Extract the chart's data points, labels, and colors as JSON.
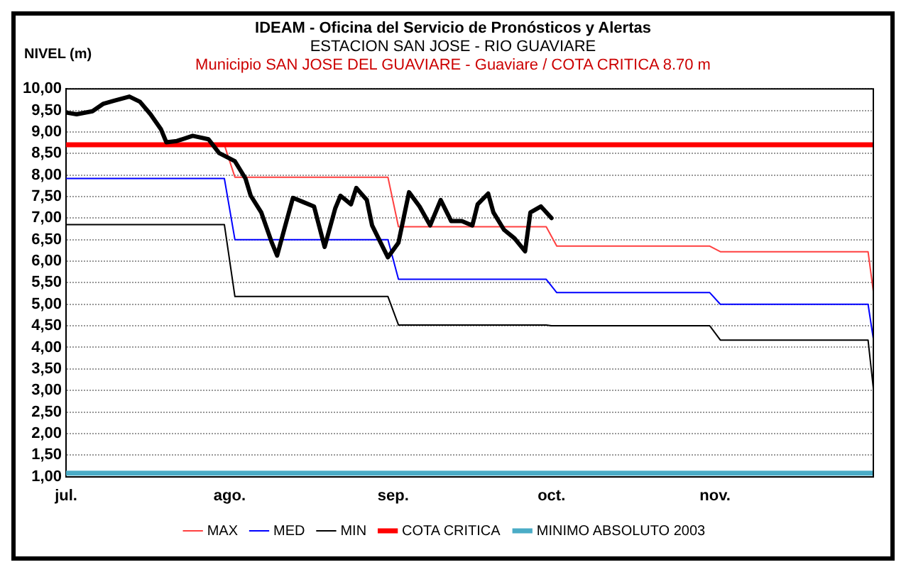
{
  "chart_data": {
    "type": "line",
    "title": "IDEAM - Oficina del Servicio de Pronósticos y Alertas",
    "subtitle": "ESTACION SAN JOSE - RIO GUAVIARE",
    "annotations": [
      "Municipio SAN JOSE DEL GUAVIARE - Guaviare  / COTA CRITICA 8.70 m"
    ],
    "ylabel": "NIVEL (m)",
    "xlim": [
      "--07-01",
      "--12-01"
    ],
    "xticks": [
      {
        "value": "--07-01",
        "label": "jul."
      },
      {
        "value": "--08-01",
        "label": "ago."
      },
      {
        "value": "--09-01",
        "label": "sep."
      },
      {
        "value": "--10-01",
        "label": "oct."
      },
      {
        "value": "--11-01",
        "label": "nov."
      }
    ],
    "ylim": [
      1,
      10
    ],
    "yticks": [
      {
        "value": 1,
        "label": "1,00"
      },
      {
        "value": 1.5,
        "label": "1,50"
      },
      {
        "value": 2,
        "label": "2,00"
      },
      {
        "value": 2.5,
        "label": "2,50"
      },
      {
        "value": 3,
        "label": "3,00"
      },
      {
        "value": 3.5,
        "label": "3,50"
      },
      {
        "value": 4,
        "label": "4,00"
      },
      {
        "value": 4.5,
        "label": "4,50"
      },
      {
        "value": 5,
        "label": "5,00"
      },
      {
        "value": 5.5,
        "label": "5,50"
      },
      {
        "value": 6,
        "label": "6,00"
      },
      {
        "value": 6.5,
        "label": "6,50"
      },
      {
        "value": 7,
        "label": "7,00"
      },
      {
        "value": 7.5,
        "label": "7,50"
      },
      {
        "value": 8,
        "label": "8,00"
      },
      {
        "value": 8.5,
        "label": "8,50"
      },
      {
        "value": 9,
        "label": "9,00"
      },
      {
        "value": 9.5,
        "label": "9,50"
      },
      {
        "value": 10,
        "label": "10,00"
      }
    ],
    "grid": "y",
    "legend": "bottom",
    "marker": "none",
    "line_style": "solid",
    "series": [
      {
        "name": "MAX",
        "color": "#ff4040",
        "x": [
          "--07-31",
          "--08-02",
          "--08-31",
          "--09-02",
          "--09-30",
          "--10-02",
          "--10-31",
          "--11-02",
          "--11-30",
          "--12-01"
        ],
        "values": [
          8.7,
          7.95,
          7.95,
          6.8,
          6.8,
          6.35,
          6.35,
          6.22,
          6.22,
          5.3
        ]
      },
      {
        "name": "MED",
        "color": "#0000ff",
        "x": [
          "--07-01",
          "--07-31",
          "--08-02",
          "--08-31",
          "--09-02",
          "--09-30",
          "--10-02",
          "--10-31",
          "--11-02",
          "--11-30",
          "--12-01"
        ],
        "values": [
          7.92,
          7.92,
          6.5,
          6.5,
          5.58,
          5.58,
          5.27,
          5.27,
          5.0,
          5.0,
          4.2
        ]
      },
      {
        "name": "MIN",
        "color": "#000000",
        "x": [
          "--07-01",
          "--07-31",
          "--08-02",
          "--08-31",
          "--09-02",
          "--09-30",
          "--10-01",
          "--10-31",
          "--11-02",
          "--11-30",
          "--12-01"
        ],
        "values": [
          6.85,
          6.85,
          5.18,
          5.18,
          4.52,
          4.52,
          4.5,
          4.5,
          4.17,
          4.17,
          3.05
        ]
      },
      {
        "name": "COTA CRITICA",
        "color": "#ff0000",
        "x": [
          "--07-01",
          "--12-01"
        ],
        "values": [
          8.7,
          8.7
        ]
      },
      {
        "name": "MINIMO ABSOLUTO 2003",
        "color": "#4bacc6",
        "x": [
          "--07-01",
          "--12-01"
        ],
        "values": [
          1.08,
          1.08
        ]
      },
      {
        "color": "#000000",
        "x": [
          "--07-01",
          "--07-03",
          "--07-06",
          "--07-08",
          "--07-10",
          "--07-13",
          "--07-15",
          "--07-17",
          "--07-19",
          "--07-20",
          "--07-22",
          "--07-25",
          "--07-28",
          "--07-30",
          "--08-02",
          "--08-04",
          "--08-05",
          "--08-07",
          "--08-09",
          "--08-10",
          "--08-12",
          "--08-13",
          "--08-15",
          "--08-17",
          "--08-19",
          "--08-21",
          "--08-22",
          "--08-24",
          "--08-25",
          "--08-27",
          "--08-28",
          "--08-31",
          "--09-02",
          "--09-04",
          "--09-06",
          "--09-08",
          "--09-10",
          "--09-12",
          "--09-14",
          "--09-16",
          "--09-17",
          "--09-19",
          "--09-20",
          "--09-22",
          "--09-24",
          "--09-26",
          "--09-27",
          "--09-29",
          "--10-01"
        ],
        "values": [
          9.45,
          9.41,
          9.48,
          9.65,
          9.72,
          9.82,
          9.7,
          9.41,
          9.06,
          8.76,
          8.79,
          8.91,
          8.83,
          8.51,
          8.32,
          7.92,
          7.52,
          7.13,
          6.43,
          6.13,
          7.03,
          7.47,
          7.37,
          7.27,
          6.33,
          7.22,
          7.52,
          7.32,
          7.7,
          7.42,
          6.83,
          6.09,
          6.43,
          7.6,
          7.27,
          6.83,
          7.42,
          6.93,
          6.93,
          6.83,
          7.32,
          7.57,
          7.13,
          6.73,
          6.53,
          6.23,
          7.13,
          7.27,
          7.0
        ]
      }
    ]
  }
}
